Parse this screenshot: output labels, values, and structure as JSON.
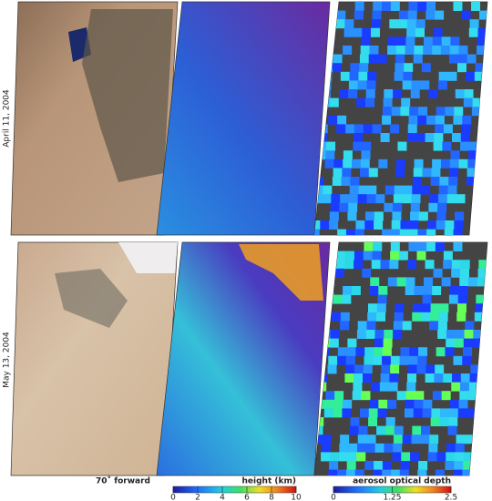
{
  "rows": [
    {
      "label": "April 11, 2004"
    },
    {
      "label": "May 13, 2004"
    }
  ],
  "caption": "70˚ forward",
  "colorbars": [
    {
      "label": "height (km)",
      "lim": [
        0,
        10
      ],
      "ticks": [
        0,
        2,
        4,
        6,
        8,
        10
      ]
    },
    {
      "label": "aerosol optical depth",
      "lim": [
        0,
        2.5
      ],
      "ticks": [
        0,
        1.25,
        2.5
      ]
    }
  ]
}
